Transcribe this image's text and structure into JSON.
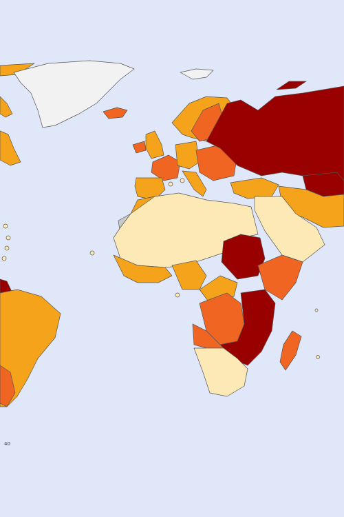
{
  "map": {
    "annotation": "40"
  }
}
